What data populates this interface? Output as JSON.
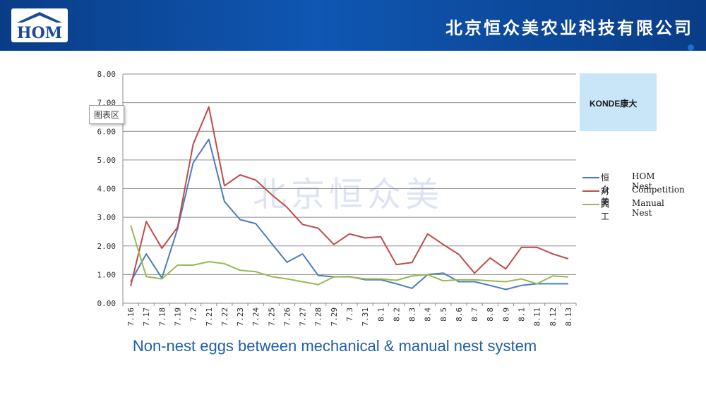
{
  "header": {
    "logo_text": "HOM",
    "company_name": "北京恒众美农业科技有限公司"
  },
  "watermark": "北京恒众美",
  "tooltip": "图表区",
  "brand_logo": "KONDE康大",
  "caption": "Non-nest eggs between mechanical & manual nest system",
  "colors": {
    "header_blue": "#0f57b3",
    "hom_series": "#4a7ebb",
    "competition_series": "#be4b48",
    "manual_series": "#98b954",
    "caption": "#1f5fa8",
    "brand_box": "#c8e6f7"
  },
  "chart_data": {
    "type": "line",
    "categories": [
      "7.16",
      "7.17",
      "7.18",
      "7.19",
      "7.2",
      "7.21",
      "7.22",
      "7.23",
      "7.24",
      "7.25",
      "7.26",
      "7.27",
      "7.28",
      "7.29",
      "7.3",
      "7.31",
      "8.1",
      "8.2",
      "8.3",
      "8.4",
      "8.5",
      "8.6",
      "8.7",
      "8.8",
      "8.9",
      "8.1",
      "8.11",
      "8.12",
      "8.13"
    ],
    "ylim": [
      0,
      8
    ],
    "yticks": [
      "0.00",
      "1.00",
      "2.00",
      "3.00",
      "4.00",
      "5.00",
      "6.00",
      "7.00",
      "8.00"
    ],
    "grid": true,
    "legend_position": "right",
    "series": [
      {
        "name_cn": "恒众美",
        "name_en": "HOM Nest",
        "color": "#4a7ebb",
        "values": [
          0.75,
          1.72,
          0.88,
          2.6,
          4.9,
          5.72,
          3.55,
          2.92,
          2.78,
          2.1,
          1.43,
          1.72,
          0.97,
          0.92,
          0.93,
          0.82,
          0.82,
          0.68,
          0.52,
          1.0,
          1.05,
          0.75,
          0.75,
          0.62,
          0.48,
          0.62,
          0.68,
          0.68,
          0.68
        ]
      },
      {
        "name_cn": "对照",
        "name_en": "Competition",
        "color": "#be4b48",
        "values": [
          0.6,
          2.85,
          1.92,
          2.65,
          5.55,
          6.85,
          4.1,
          4.48,
          4.3,
          3.8,
          3.35,
          2.75,
          2.62,
          2.05,
          2.42,
          2.28,
          2.32,
          1.35,
          1.42,
          2.42,
          2.05,
          1.7,
          1.05,
          1.58,
          1.2,
          1.95,
          1.95,
          1.72,
          1.55
        ]
      },
      {
        "name_cn": "人工",
        "name_en": "Manual Nest",
        "color": "#98b954",
        "values": [
          2.72,
          0.93,
          0.85,
          1.33,
          1.33,
          1.45,
          1.38,
          1.15,
          1.1,
          0.93,
          0.85,
          0.75,
          0.65,
          0.92,
          0.92,
          0.85,
          0.85,
          0.8,
          0.95,
          1.0,
          0.78,
          0.82,
          0.82,
          0.78,
          0.75,
          0.85,
          0.68,
          0.95,
          0.92
        ]
      }
    ]
  }
}
